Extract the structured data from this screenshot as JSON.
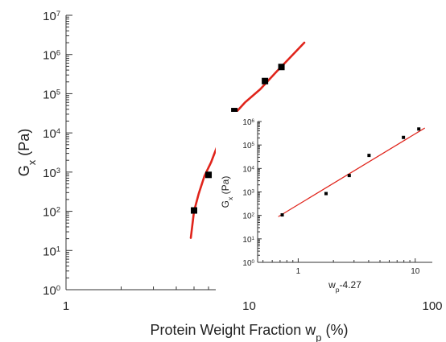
{
  "chart_data": [
    {
      "type": "scatter",
      "title": "",
      "xlabel": {
        "main": "Protein Weight Fraction w",
        "sub": "p",
        "tail": " (%)"
      },
      "ylabel": {
        "main": "G",
        "sub": "x",
        "tail": " (Pa)"
      },
      "x_scale": "log",
      "y_scale": "log",
      "xlim": [
        1,
        100
      ],
      "ylim": [
        1,
        10000000
      ],
      "x_ticks": [
        {
          "value": 1,
          "label": "1"
        },
        {
          "value": 10,
          "label": "10"
        },
        {
          "value": 100,
          "label": "100"
        }
      ],
      "y_ticks": [
        {
          "value": 1,
          "base": "10",
          "exp": "0"
        },
        {
          "value": 10,
          "base": "10",
          "exp": "1"
        },
        {
          "value": 100,
          "base": "10",
          "exp": "2"
        },
        {
          "value": 1000,
          "base": "10",
          "exp": "3"
        },
        {
          "value": 10000,
          "base": "10",
          "exp": "4"
        },
        {
          "value": 100000,
          "base": "10",
          "exp": "5"
        },
        {
          "value": 1000000,
          "base": "10",
          "exp": "6"
        },
        {
          "value": 10000000,
          "base": "10",
          "exp": "7"
        }
      ],
      "series": [
        {
          "kind": "points",
          "color": "#000000",
          "marker": "square",
          "x": [
            5.0,
            6.0,
            7.0,
            8.3,
            12.2,
            15.0
          ],
          "y": [
            105,
            850,
            5000,
            36000,
            210000,
            480000
          ]
        },
        {
          "kind": "fit-line",
          "color": "#e0241b",
          "x": [
            4.8,
            5.0,
            5.3,
            5.7,
            6.2,
            7.0,
            8.0,
            9.5,
            11.5,
            14.0,
            17.0,
            20.0
          ],
          "y": [
            21,
            100,
            280,
            800,
            1800,
            8000,
            25000,
            60000,
            130000,
            350000,
            900000,
            2000000
          ]
        }
      ]
    },
    {
      "type": "scatter",
      "title": "",
      "xlabel": {
        "main": "w",
        "sub": "p",
        "tail": "-4.27"
      },
      "ylabel": {
        "main": "G",
        "sub": "x",
        "tail": " (Pa)"
      },
      "x_scale": "log",
      "y_scale": "log",
      "xlim": [
        0.45,
        14
      ],
      "ylim": [
        1,
        1000000
      ],
      "x_ticks": [
        {
          "value": 1,
          "label": "1"
        },
        {
          "value": 10,
          "label": "10"
        }
      ],
      "y_ticks": [
        {
          "value": 1,
          "base": "10",
          "exp": "0"
        },
        {
          "value": 10,
          "base": "10",
          "exp": "1"
        },
        {
          "value": 100,
          "base": "10",
          "exp": "2"
        },
        {
          "value": 1000,
          "base": "10",
          "exp": "3"
        },
        {
          "value": 10000,
          "base": "10",
          "exp": "4"
        },
        {
          "value": 100000,
          "base": "10",
          "exp": "5"
        },
        {
          "value": 1000000,
          "base": "10",
          "exp": "6"
        }
      ],
      "series": [
        {
          "kind": "points",
          "color": "#000000",
          "marker": "square",
          "x": [
            0.73,
            1.73,
            2.73,
            4.03,
            7.93,
            10.73
          ],
          "y": [
            105,
            850,
            5000,
            36000,
            210000,
            480000
          ]
        },
        {
          "kind": "fit-line",
          "color": "#e0241b",
          "x": [
            0.68,
            12.0
          ],
          "y": [
            90,
            520000
          ]
        }
      ]
    }
  ]
}
